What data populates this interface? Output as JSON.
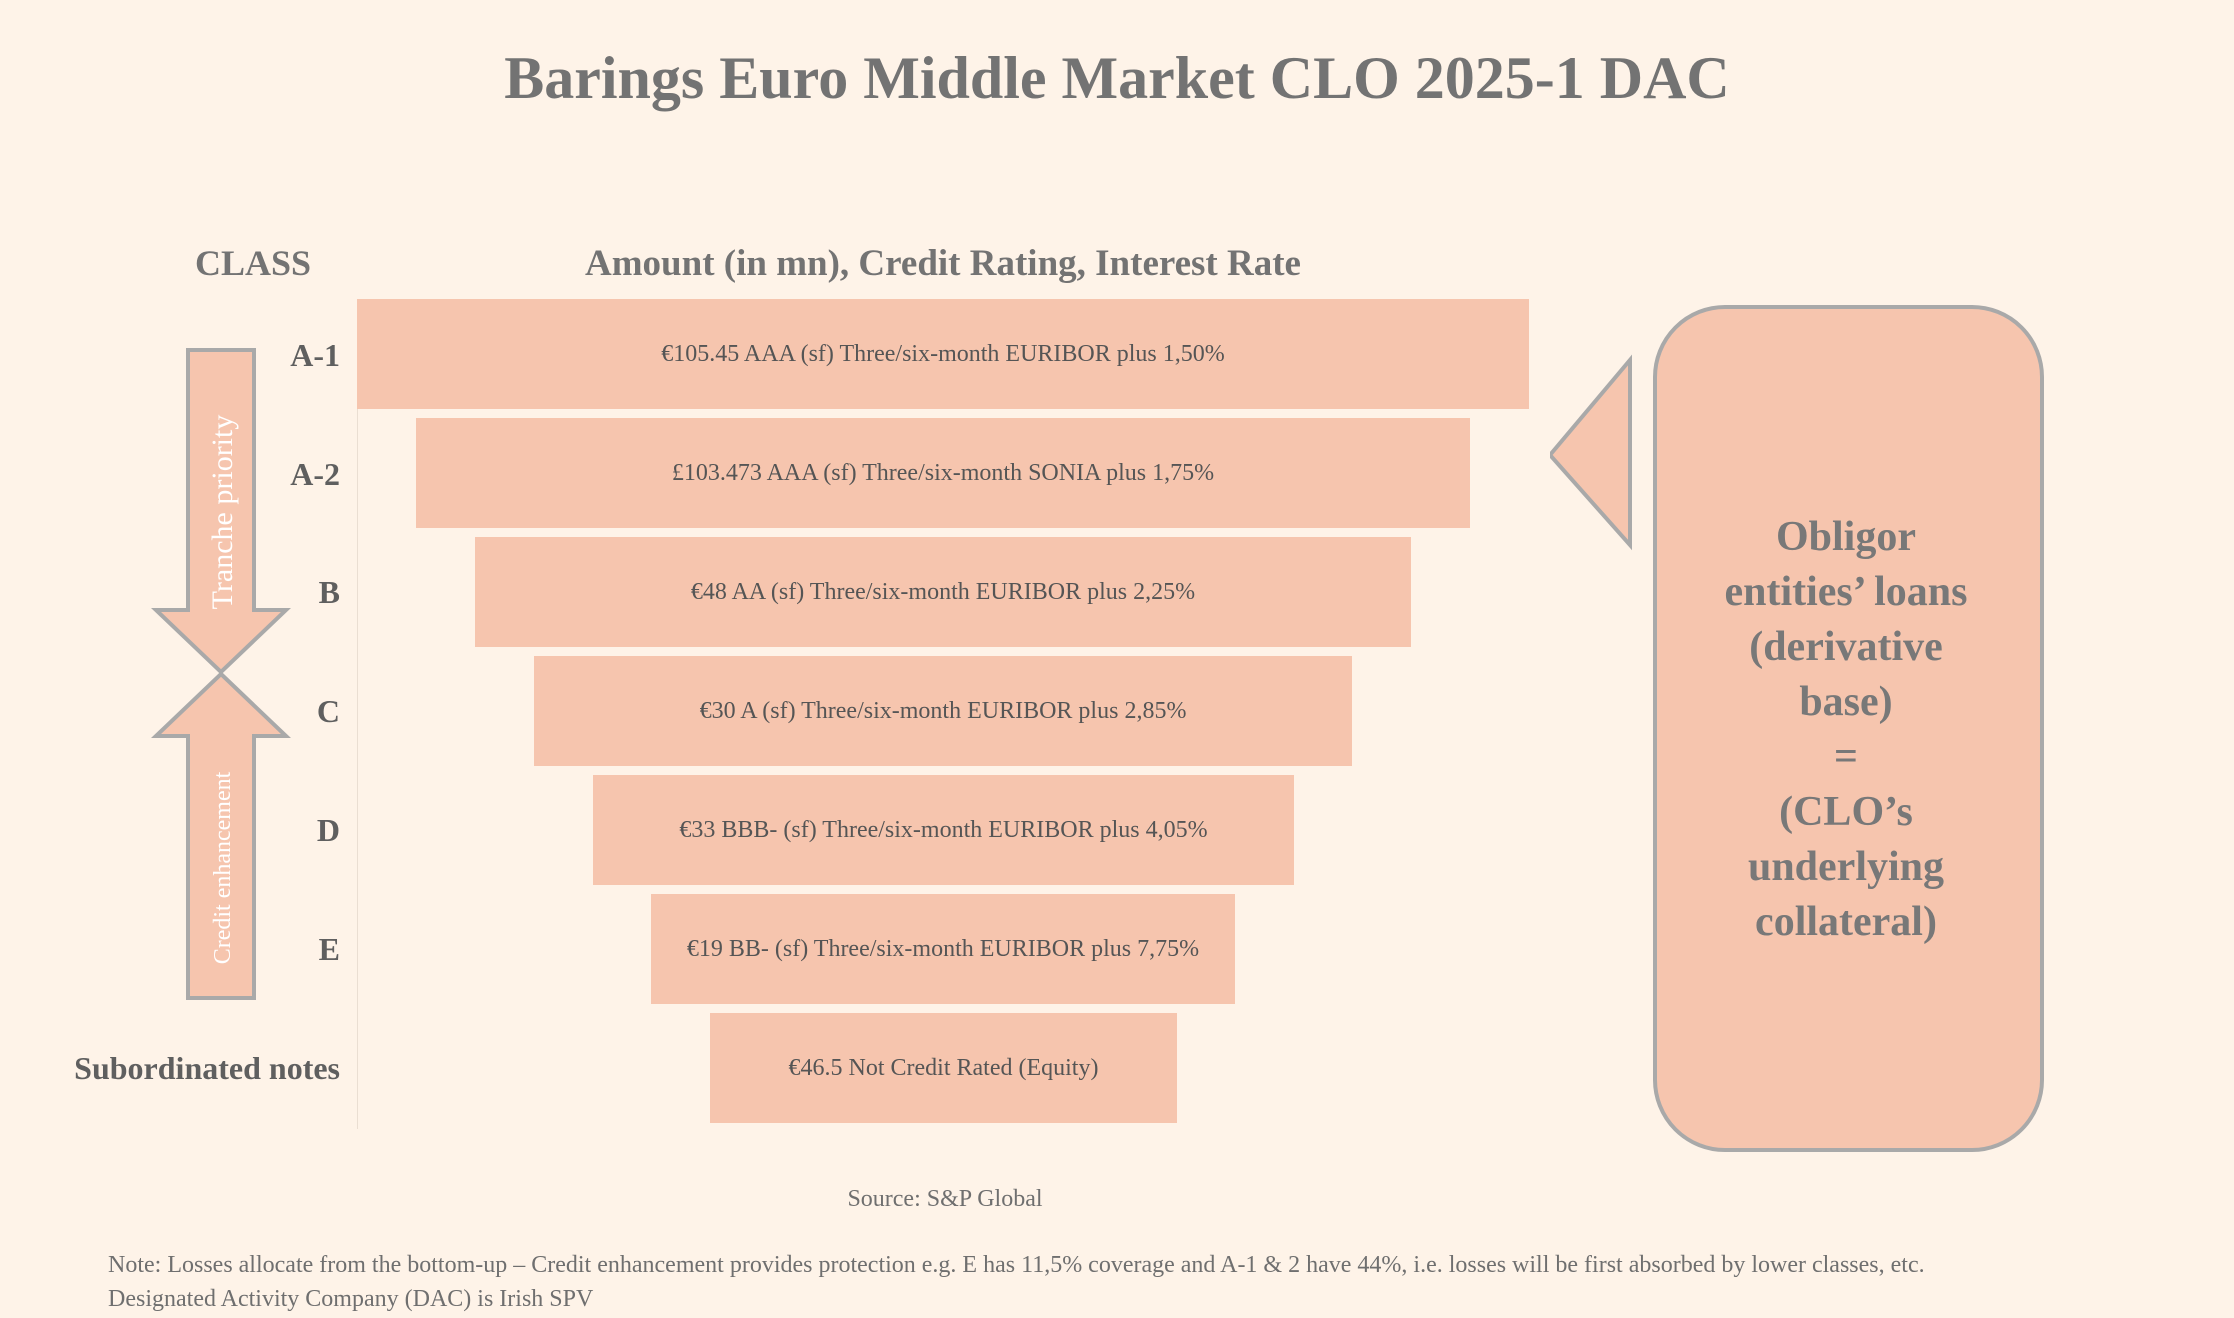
{
  "title": "Barings Euro Middle Market CLO 2025-1 DAC",
  "headers": {
    "class": "CLASS",
    "amount": "Amount (in mn), Credit Rating, Interest Rate"
  },
  "tranches": [
    {
      "class": "A-1",
      "detail": "€105.45 AAA (sf)  Three/six-month EURIBOR plus 1,50%"
    },
    {
      "class": "A-2",
      "detail": "£103.473 AAA (sf)  Three/six-month SONIA plus 1,75%"
    },
    {
      "class": "B",
      "detail": "€48 AA (sf)  Three/six-month EURIBOR plus 2,25%"
    },
    {
      "class": "C",
      "detail": "€30 A (sf)  Three/six-month EURIBOR plus 2,85%"
    },
    {
      "class": "D",
      "detail": "€33 BBB- (sf)  Three/six-month EURIBOR plus 4,05%"
    },
    {
      "class": "E",
      "detail": "€19 BB- (sf)  Three/six-month EURIBOR plus 7,75%"
    },
    {
      "class": "Subordinated notes",
      "detail": "€46.5 Not Credit Rated (Equity)"
    }
  ],
  "arrows": {
    "down_label": "Tranche priority",
    "up_label": "Credit enhancement"
  },
  "collateral_box": {
    "text": "Obligor\nentities’ loans\n(derivative\nbase)\n=\n(CLO’s\nunderlying\ncollateral)"
  },
  "source": "Source: S&P Global",
  "notes": [
    "Note: Losses allocate from the bottom-up – Credit enhancement provides protection e.g. E has 11,5% coverage and A-1 & 2 have 44%, i.e. losses will be first absorbed by lower classes, etc.",
    "Designated Activity Company (DAC) is Irish SPV"
  ],
  "colors": {
    "background": "#fef3e8",
    "bar_fill": "#f6c5ae",
    "outline": "#a9a9a9",
    "heading_text": "#737373"
  }
}
